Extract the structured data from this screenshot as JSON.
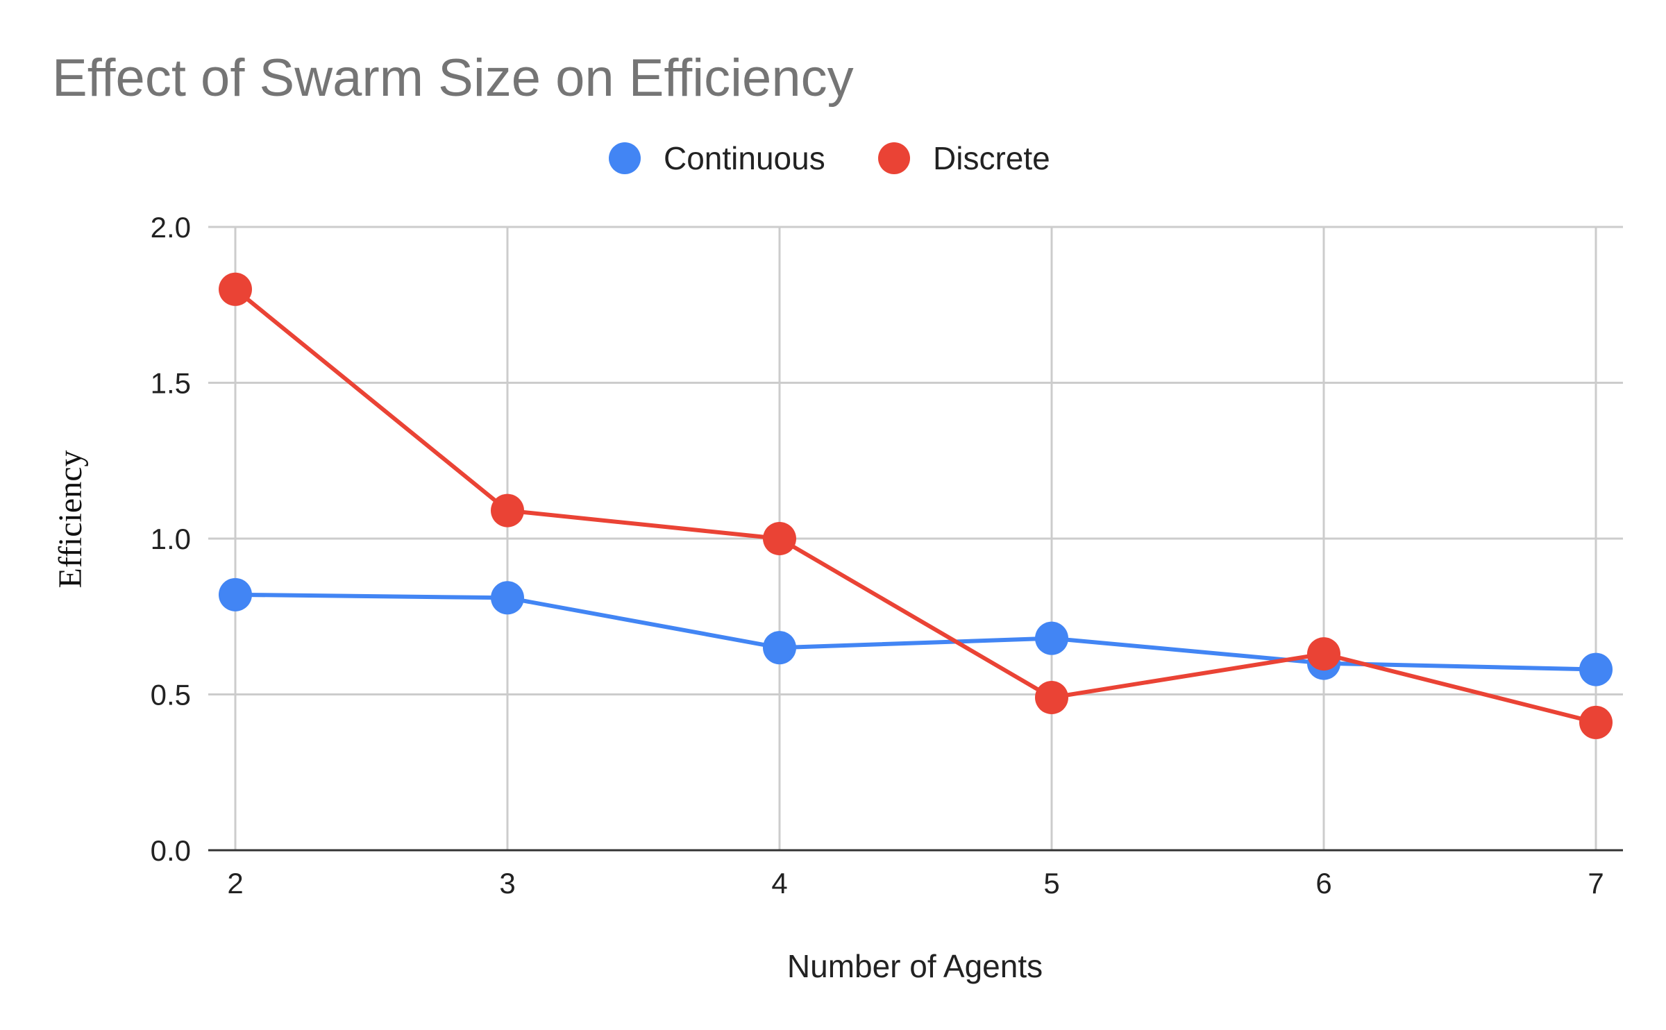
{
  "chart_data": {
    "type": "line",
    "title": "Effect of Swarm Size on Efficiency",
    "xlabel": "Number of Agents",
    "ylabel": "Efficiency",
    "x": [
      2,
      3,
      4,
      5,
      6,
      7
    ],
    "x_tick_labels": [
      "2",
      "3",
      "4",
      "5",
      "6",
      "7"
    ],
    "y_tick_labels": [
      "0.0",
      "0.5",
      "1.0",
      "1.5",
      "2.0"
    ],
    "ylim": [
      0,
      2
    ],
    "xlim": [
      2,
      7
    ],
    "grid": true,
    "legend_position": "top-center",
    "series": [
      {
        "name": "Continuous",
        "color": "#4285f4",
        "values": [
          0.82,
          0.81,
          0.65,
          0.68,
          0.6,
          0.58
        ]
      },
      {
        "name": "Discrete",
        "color": "#ea4335",
        "values": [
          1.8,
          1.09,
          1.0,
          0.49,
          0.63,
          0.41
        ]
      }
    ]
  }
}
